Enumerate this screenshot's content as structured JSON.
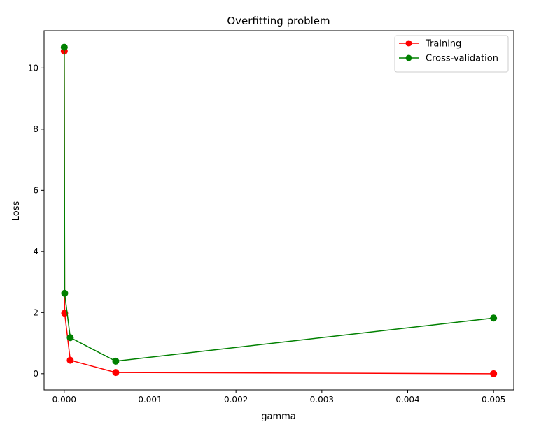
{
  "chart_data": {
    "type": "line",
    "title": "Overfitting problem",
    "xlabel": "gamma",
    "ylabel": "Loss",
    "xlim": [
      -0.000235,
      0.005235
    ],
    "ylim": [
      -0.53,
      11.22
    ],
    "xticks": [
      {
        "value": 0.0,
        "label": "0.000"
      },
      {
        "value": 0.001,
        "label": "0.001"
      },
      {
        "value": 0.002,
        "label": "0.002"
      },
      {
        "value": 0.003,
        "label": "0.003"
      },
      {
        "value": 0.004,
        "label": "0.004"
      },
      {
        "value": 0.005,
        "label": "0.005"
      }
    ],
    "yticks": [
      {
        "value": 0,
        "label": "0"
      },
      {
        "value": 2,
        "label": "2"
      },
      {
        "value": 4,
        "label": "4"
      },
      {
        "value": 6,
        "label": "6"
      },
      {
        "value": 8,
        "label": "8"
      },
      {
        "value": 10,
        "label": "10"
      }
    ],
    "grid": false,
    "legend_position": "top-right",
    "series": [
      {
        "name": "Training",
        "color": "#ff0000",
        "x": [
          1e-07,
          5e-06,
          7e-05,
          0.0006,
          0.005
        ],
        "y": [
          10.55,
          1.98,
          0.44,
          0.04,
          0.0
        ]
      },
      {
        "name": "Cross-validation",
        "color": "#008000",
        "x": [
          1e-07,
          5e-06,
          7e-05,
          0.0006,
          0.005
        ],
        "y": [
          10.68,
          2.63,
          1.18,
          0.41,
          1.82
        ]
      }
    ]
  }
}
